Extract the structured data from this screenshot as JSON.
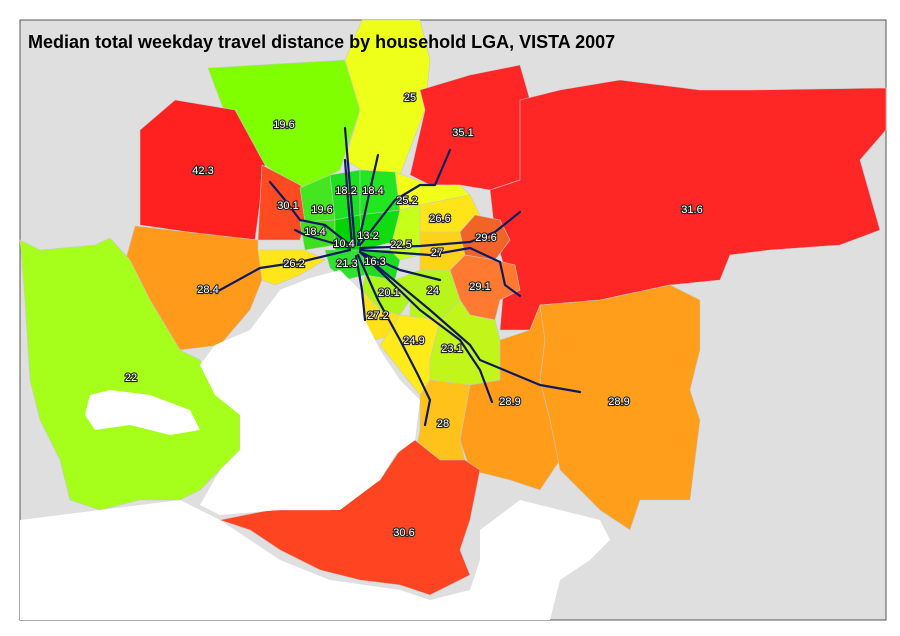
{
  "title": "Median total weekday travel distance by household LGA, VISTA 2007",
  "regions": [
    {
      "value": 19.6,
      "color": "#80ff00"
    },
    {
      "value": 25,
      "color": "#eeff1a"
    },
    {
      "value": 35.1,
      "color": "#ff2626"
    },
    {
      "value": 42.3,
      "color": "#ff2020"
    },
    {
      "value": 31.6,
      "color": "#ff2626"
    },
    {
      "value": 30.1,
      "color": "#ff4a22"
    },
    {
      "value": 18.2,
      "color": "#1ee01e"
    },
    {
      "value": 18.4,
      "color": "#22e622"
    },
    {
      "value": 19.6,
      "color": "#44e622"
    },
    {
      "value": 25.2,
      "color": "#f2ff1a"
    },
    {
      "value": 26.6,
      "color": "#ffe41a"
    },
    {
      "value": 18.4,
      "color": "#3ee01e"
    },
    {
      "value": 10.4,
      "color": "#00d400"
    },
    {
      "value": 13.2,
      "color": "#10dc10"
    },
    {
      "value": 22.5,
      "color": "#c6ff1a"
    },
    {
      "value": 27,
      "color": "#ffd21a"
    },
    {
      "value": 29.6,
      "color": "#f06428"
    },
    {
      "value": 26.2,
      "color": "#ffe61a"
    },
    {
      "value": 21.3,
      "color": "#2ee22e"
    },
    {
      "value": 16.3,
      "color": "#20dc20"
    },
    {
      "value": 28.4,
      "color": "#ff9a1a"
    },
    {
      "value": 20.1,
      "color": "#aef51a"
    },
    {
      "value": 24,
      "color": "#b8f51a"
    },
    {
      "value": 29.1,
      "color": "#ff7a30"
    },
    {
      "value": 27.2,
      "color": "#ffe11a"
    },
    {
      "value": 24.9,
      "color": "#ffea1a"
    },
    {
      "value": 23.1,
      "color": "#c2f51a"
    },
    {
      "value": 22,
      "color": "#a6ff1a"
    },
    {
      "value": 28.9,
      "color": "#ff9c1a"
    },
    {
      "value": 28.9,
      "color": "#ff9e1a"
    },
    {
      "value": 28,
      "color": "#ffc21a"
    },
    {
      "value": 30.6,
      "color": "#ff4422"
    }
  ]
}
